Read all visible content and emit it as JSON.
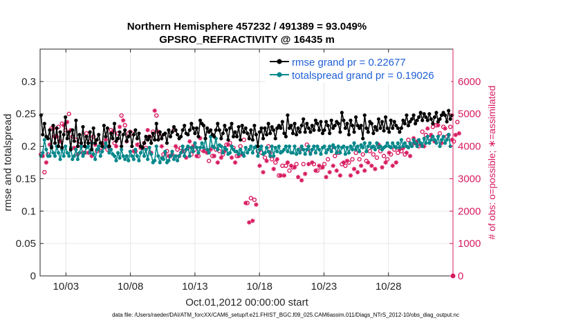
{
  "chart_data": {
    "type": "line",
    "title_line1": "Northern Hemisphere 457232 / 491389 = 93.049%",
    "title_line2": "GPSRO_REFRACTIVITY @ 16435 m",
    "xlabel": "Oct.01,2012 00:00:00 start",
    "ylabel_left": "rmse and totalspread",
    "ylabel_right": "# of obs: o=possible; ∗=assimilated",
    "footer": "data file: /Users/raeder/DAI/ATM_forcXX/CAM6_setup/f.e21.FHIST_BGC.f09_025.CAM6assim.011/Diags_NTrS_2012-10/obs_diag_output.nc",
    "xlim": [
      1,
      33
    ],
    "x_ticks": [
      3,
      8,
      13,
      18,
      23,
      28
    ],
    "x_tick_labels": [
      "10/03",
      "10/08",
      "10/13",
      "10/18",
      "10/23",
      "10/28"
    ],
    "ylim_left": [
      0,
      0.35
    ],
    "y_ticks_left": [
      0,
      0.05,
      0.1,
      0.15,
      0.2,
      0.25,
      0.3
    ],
    "y_tick_labels_left": [
      "0",
      "0.05",
      "0.1",
      "0.15",
      "0.2",
      "0.25",
      "0.3"
    ],
    "ylim_right": [
      0,
      7000
    ],
    "y_ticks_right": [
      0,
      1000,
      2000,
      3000,
      4000,
      5000,
      6000
    ],
    "y_tick_labels_right": [
      "0",
      "1000",
      "2000",
      "3000",
      "4000",
      "5000",
      "6000"
    ],
    "grid": true,
    "legend_position": "top-right",
    "colors": {
      "rmse": "#000000",
      "spread": "#00878a",
      "obs": "#d81b60",
      "legend_text": "#1f5fd6",
      "grid": "#e6e6e6"
    },
    "series": [
      {
        "name": "rmse",
        "label": "rmse grand pr = 0.22677",
        "values": [
          0.248,
          0.218,
          0.235,
          0.215,
          0.212,
          0.225,
          0.198,
          0.232,
          0.205,
          0.228,
          0.2,
          0.222,
          0.198,
          0.218,
          0.245,
          0.212,
          0.222,
          0.195,
          0.225,
          0.208,
          0.24,
          0.2,
          0.218,
          0.205,
          0.23,
          0.2,
          0.215,
          0.205,
          0.222,
          0.195,
          0.228,
          0.205,
          0.21,
          0.218,
          0.205,
          0.2,
          0.232,
          0.215,
          0.228,
          0.2,
          0.22,
          0.212,
          0.235,
          0.208,
          0.212,
          0.222,
          0.2,
          0.218,
          0.225,
          0.208,
          0.215,
          0.222,
          0.2,
          0.218,
          0.225,
          0.212,
          0.22,
          0.2,
          0.198,
          0.205,
          0.215,
          0.21,
          0.215,
          0.205,
          0.22,
          0.21,
          0.235,
          0.21,
          0.222,
          0.212,
          0.218,
          0.22,
          0.205,
          0.225,
          0.215,
          0.222,
          0.23,
          0.225,
          0.218,
          0.212,
          0.215,
          0.225,
          0.232,
          0.22,
          0.218,
          0.225,
          0.235,
          0.228,
          0.22,
          0.228,
          0.215,
          0.24,
          0.235,
          0.232,
          0.212,
          0.228,
          0.222,
          0.225,
          0.218,
          0.215,
          0.225,
          0.235,
          0.225,
          0.212,
          0.22,
          0.232,
          0.225,
          0.21,
          0.228,
          0.235,
          0.215,
          0.222,
          0.215,
          0.23,
          0.21,
          0.232,
          0.222,
          0.228,
          0.22,
          0.212,
          0.225,
          0.21,
          0.232,
          0.218,
          0.2,
          0.222,
          0.228,
          0.212,
          0.228,
          0.218,
          0.235,
          0.22,
          0.23,
          0.225,
          0.212,
          0.228,
          0.232,
          0.228,
          0.238,
          0.22,
          0.215,
          0.248,
          0.228,
          0.232,
          0.22,
          0.235,
          0.218,
          0.228,
          0.222,
          0.232,
          0.242,
          0.222,
          0.235,
          0.228,
          0.222,
          0.232,
          0.225,
          0.24,
          0.235,
          0.225,
          0.238,
          0.22,
          0.225,
          0.238,
          0.232,
          0.22,
          0.24,
          0.228,
          0.232,
          0.238,
          0.235,
          0.222,
          0.252,
          0.24,
          0.228,
          0.235,
          0.218,
          0.24,
          0.232,
          0.222,
          0.245,
          0.232,
          0.228,
          0.232,
          0.212,
          0.248,
          0.228,
          0.222,
          0.238,
          0.235,
          0.22,
          0.23,
          0.225,
          0.242,
          0.228,
          0.238,
          0.224,
          0.245,
          0.228,
          0.222,
          0.24,
          0.228,
          0.238,
          0.232,
          0.228,
          0.222,
          0.228,
          0.24,
          0.235,
          0.248,
          0.232,
          0.238,
          0.242,
          0.248,
          0.235,
          0.24,
          0.245,
          0.252,
          0.24,
          0.25,
          0.245,
          0.24,
          0.25,
          0.242,
          0.235,
          0.245,
          0.252,
          0.238,
          0.242,
          0.248,
          0.252,
          0.248,
          0.238,
          0.255,
          0.242,
          0.248
        ]
      },
      {
        "name": "totalspread",
        "label": "totalspread grand pr = 0.19026",
        "values": [
          0.185,
          0.19,
          0.21,
          0.195,
          0.185,
          0.185,
          0.2,
          0.19,
          0.185,
          0.2,
          0.19,
          0.18,
          0.195,
          0.185,
          0.2,
          0.19,
          0.185,
          0.198,
          0.18,
          0.185,
          0.195,
          0.18,
          0.19,
          0.2,
          0.185,
          0.19,
          0.198,
          0.2,
          0.19,
          0.205,
          0.188,
          0.18,
          0.195,
          0.2,
          0.185,
          0.192,
          0.198,
          0.205,
          0.2,
          0.19,
          0.195,
          0.188,
          0.185,
          0.178,
          0.19,
          0.182,
          0.195,
          0.185,
          0.18,
          0.185,
          0.178,
          0.192,
          0.185,
          0.18,
          0.195,
          0.185,
          0.178,
          0.19,
          0.198,
          0.185,
          0.195,
          0.18,
          0.198,
          0.188,
          0.175,
          0.178,
          0.2,
          0.185,
          0.175,
          0.182,
          0.18,
          0.192,
          0.175,
          0.178,
          0.185,
          0.192,
          0.18,
          0.185,
          0.178,
          0.185,
          0.19,
          0.2,
          0.185,
          0.195,
          0.2,
          0.185,
          0.198,
          0.192,
          0.205,
          0.198,
          0.19,
          0.198,
          0.205,
          0.198,
          0.212,
          0.195,
          0.19,
          0.215,
          0.2,
          0.198,
          0.212,
          0.195,
          0.202,
          0.2,
          0.19,
          0.198,
          0.195,
          0.188,
          0.19,
          0.2,
          0.195,
          0.192,
          0.192,
          0.188,
          0.195,
          0.19,
          0.185,
          0.198,
          0.19,
          0.195,
          0.2,
          0.19,
          0.198,
          0.2,
          0.185,
          0.195,
          0.2,
          0.188,
          0.19,
          0.198,
          0.192,
          0.185,
          0.2,
          0.185,
          0.198,
          0.192,
          0.2,
          0.19,
          0.192,
          0.195,
          0.2,
          0.192,
          0.2,
          0.19,
          0.19,
          0.2,
          0.188,
          0.195,
          0.19,
          0.2,
          0.195,
          0.188,
          0.195,
          0.2,
          0.188,
          0.195,
          0.2,
          0.19,
          0.2,
          0.195,
          0.188,
          0.198,
          0.2,
          0.19,
          0.195,
          0.2,
          0.192,
          0.202,
          0.198,
          0.19,
          0.2,
          0.19,
          0.198,
          0.2,
          0.188,
          0.198,
          0.19,
          0.2,
          0.195,
          0.205,
          0.195,
          0.2,
          0.192,
          0.202,
          0.198,
          0.205,
          0.192,
          0.2,
          0.205,
          0.198,
          0.2,
          0.195,
          0.205,
          0.198,
          0.2,
          0.195,
          0.198,
          0.2,
          0.205,
          0.2,
          0.198,
          0.205,
          0.2,
          0.198,
          0.205,
          0.198,
          0.21,
          0.2,
          0.205,
          0.2,
          0.198,
          0.205,
          0.2,
          0.21,
          0.205,
          0.2,
          0.21,
          0.205,
          0.2,
          0.212,
          0.205,
          0.215,
          0.205,
          0.21,
          0.215,
          0.21,
          0.205,
          0.215,
          0.2,
          0.21,
          0.215,
          0.205,
          0.21,
          0.218,
          0.2
        ]
      },
      {
        "name": "obs_possible",
        "marker": "circle",
        "values": [
          3750,
          3900,
          3200,
          3650,
          3750,
          4250,
          4550,
          4700,
          4300,
          4450,
          4600,
          4300,
          4700,
          4800,
          4500,
          4900,
          5000,
          4650,
          4300,
          4100,
          4200,
          3900,
          4050,
          4150,
          3800,
          3950,
          4400,
          3950,
          4150,
          3850,
          4300,
          4200,
          3850,
          4050,
          3950,
          4250,
          4000,
          4350,
          3900,
          4150,
          4500,
          4600,
          4100,
          4150,
          4400,
          4750,
          4950,
          4950,
          4650,
          4300,
          4400,
          4600,
          4400,
          4000,
          3850,
          4200,
          4050,
          4100,
          3950,
          4250,
          3950,
          4650,
          4300,
          3950,
          4450,
          5300,
          4950,
          4600,
          4300,
          4150,
          3750,
          3950,
          3850,
          3850,
          3700,
          3900,
          4500,
          4150,
          3900,
          3850,
          3950,
          4000,
          3850,
          3800,
          3950,
          4300,
          3750,
          4150,
          3900,
          3850,
          3700,
          4400,
          3900,
          4000,
          3850,
          3950,
          3550,
          4050,
          3700,
          3850,
          3900,
          3650,
          3850,
          3800,
          3750,
          4000,
          4050,
          4200,
          4100,
          3800,
          3950,
          3650,
          3700,
          3850,
          4000,
          3900,
          4200,
          2400,
          2250,
          1800,
          2400,
          1800,
          2350,
          2350,
          3850,
          3550,
          3800,
          3350,
          3650,
          3700,
          4000,
          3950,
          3600,
          3450,
          3500,
          3750,
          3100,
          3250,
          3400,
          3250,
          3400,
          3650,
          3250,
          3550,
          3350,
          3500,
          3450,
          3200,
          3900,
          3100,
          3450,
          3300,
          4050,
          3600,
          3850,
          3650,
          3450,
          3400,
          3250,
          3550,
          3350,
          3500,
          3450,
          3200,
          3600,
          3350,
          3950,
          3550,
          3700,
          3400,
          3800,
          3250,
          3450,
          3650,
          3400,
          3700,
          3500,
          3250,
          3600,
          3450,
          3800,
          3350,
          3600,
          3550,
          3750,
          3400,
          3550,
          3650,
          3850,
          3550,
          3750,
          3450,
          3650,
          4200,
          3850,
          3500,
          3700,
          3650,
          3600,
          3950,
          3750,
          3550,
          3900,
          3650,
          3800,
          4050,
          3850,
          4100,
          3750,
          3950,
          4200,
          3850,
          4050,
          4400,
          4100,
          4300,
          4000,
          4200,
          4450,
          4150,
          4350,
          4700,
          4250,
          4500,
          4600,
          4300,
          4650,
          4800,
          4400,
          4250,
          4600,
          4700,
          4300,
          4500,
          4600,
          4350,
          4150,
          4500,
          4750,
          4550
        ]
      },
      {
        "name": "obs_assimilated",
        "marker": "asterisk",
        "values": [
          3600,
          3700,
          3100,
          3500,
          3650,
          4050,
          4400,
          4550,
          4150,
          4300,
          4450,
          4150,
          4550,
          4650,
          4350,
          4750,
          4850,
          4500,
          4150,
          3950,
          4050,
          3750,
          3900,
          4000,
          3650,
          3800,
          4250,
          3800,
          4000,
          3700,
          4150,
          4050,
          3700,
          3900,
          3800,
          4100,
          3850,
          4200,
          3750,
          4000,
          4350,
          4450,
          3950,
          4000,
          4250,
          4600,
          4800,
          4800,
          4500,
          4150,
          4250,
          4450,
          4250,
          3850,
          3700,
          4050,
          3900,
          3950,
          3800,
          4100,
          3000,
          4500,
          4150,
          3800,
          4300,
          5100,
          4800,
          4450,
          4150,
          4000,
          3600,
          3800,
          3700,
          3700,
          3550,
          3750,
          4350,
          4000,
          3750,
          3700,
          3800,
          3850,
          3700,
          3650,
          3800,
          4150,
          3600,
          4000,
          3750,
          3700,
          3550,
          4250,
          3750,
          3850,
          3700,
          3800,
          3400,
          3900,
          3550,
          3700,
          3750,
          3500,
          3700,
          3650,
          3600,
          3850,
          3900,
          4050,
          3950,
          3650,
          3800,
          3500,
          3550,
          3700,
          3850,
          3750,
          4050,
          2250,
          2100,
          1650,
          2250,
          1700,
          2200,
          2200,
          3700,
          3400,
          3650,
          3200,
          3500,
          3550,
          3850,
          3800,
          3450,
          3300,
          3350,
          3600,
          2950,
          3100,
          3250,
          3100,
          3250,
          3500,
          3100,
          3400,
          3200,
          3350,
          3300,
          3050,
          3750,
          2950,
          3300,
          3150,
          3900,
          3450,
          3700,
          3500,
          3300,
          3250,
          3100,
          3400,
          3200,
          3350,
          3300,
          3050,
          3450,
          3200,
          3800,
          3400,
          3550,
          3250,
          3650,
          3100,
          3300,
          3500,
          3250,
          3550,
          3350,
          3100,
          3450,
          3300,
          3650,
          3200,
          3450,
          3400,
          3600,
          3250,
          3400,
          3500,
          3700,
          3400,
          3600,
          3300,
          3500,
          4050,
          3700,
          3350,
          3550,
          3500,
          3450,
          3800,
          3600,
          3400,
          3750,
          3500,
          3650,
          3900,
          3700,
          3950,
          3600,
          3800,
          4050,
          3700,
          3900,
          4250,
          3950,
          4150,
          3850,
          4050,
          4300,
          4000,
          4200,
          4550,
          4100,
          4350,
          4450,
          4150,
          4500,
          4650,
          4250,
          4100,
          4450,
          4550,
          4150,
          4350,
          4450,
          4200,
          4000,
          4350,
          4600,
          4400
        ]
      }
    ]
  }
}
